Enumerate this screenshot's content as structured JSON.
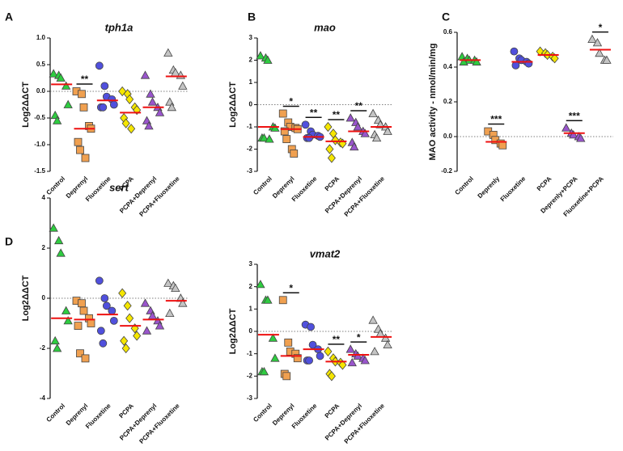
{
  "chart_data": [
    {
      "type": "dot",
      "label": "A",
      "title": "tph1a",
      "ylabel": "Log2ΔΔCT",
      "categories": [
        "Control",
        "Deprenyl",
        "Fluoxetine",
        "PCPA",
        "PCPA+Deprenyl",
        "PCPA+Fluoxetine"
      ],
      "colors": [
        "#2ecc40",
        "#f0a050",
        "#5050dd",
        "#f5e600",
        "#9955cc",
        "#c4c4c4"
      ],
      "markers": [
        "triangle",
        "square",
        "circle",
        "diamond",
        "triangle",
        "triangle"
      ],
      "values": [
        [
          0.33,
          0.3,
          0.25,
          0.1,
          -0.25,
          -0.45,
          -0.55
        ],
        [
          0.0,
          -0.05,
          -0.3,
          -0.65,
          -0.7,
          -0.95,
          -1.1,
          -1.25
        ],
        [
          0.48,
          0.1,
          -0.1,
          -0.15,
          -0.25,
          -0.3,
          -0.3
        ],
        [
          0.0,
          -0.05,
          -0.15,
          -0.3,
          -0.35,
          -0.5,
          -0.6,
          -0.7
        ],
        [
          0.3,
          -0.05,
          -0.2,
          -0.3,
          -0.4,
          -0.55,
          -0.65
        ],
        [
          0.72,
          0.4,
          0.35,
          0.3,
          0.1,
          -0.2,
          -0.3
        ]
      ],
      "medians": [
        0.13,
        -0.7,
        -0.17,
        -0.4,
        -0.3,
        0.28
      ],
      "median_color": "#ee1111",
      "annotations": [
        null,
        "**",
        null,
        null,
        null,
        null
      ],
      "refline": 0,
      "ylim": [
        -1.5,
        1.0
      ],
      "yticks": [
        -1.5,
        {
          "value": -1,
          "label": "-1.0"
        },
        -0.5,
        {
          "value": 0,
          "label": "0.0"
        },
        0.5,
        {
          "value": 1,
          "label": "1.0"
        }
      ]
    },
    {
      "type": "dot",
      "label": "B",
      "title": "mao",
      "ylabel": "Log2ΔΔCT",
      "categories": [
        "Control",
        "Deprenyl",
        "Fluoxetine",
        "PCPA",
        "PCPA+Deprenyl",
        "PCPA+Fluoxetine"
      ],
      "colors": [
        "#2ecc40",
        "#f0a050",
        "#5050dd",
        "#f5e600",
        "#9955cc",
        "#c4c4c4"
      ],
      "markers": [
        "triangle",
        "square",
        "circle",
        "diamond",
        "triangle",
        "triangle"
      ],
      "values": [
        [
          2.2,
          2.1,
          2.0,
          -1.0,
          -1.05,
          -1.5,
          -1.5,
          -1.55
        ],
        [
          -0.4,
          -0.8,
          -1.0,
          -1.05,
          -1.1,
          -1.2,
          -1.55,
          -2.0,
          -2.2
        ],
        [
          -0.9,
          -1.2,
          -1.35,
          -1.4,
          -1.45,
          -1.5,
          -1.5
        ],
        [
          -1.0,
          -1.3,
          -1.6,
          -1.7,
          -1.75,
          -2.0,
          -2.4
        ],
        [
          -0.6,
          -0.8,
          -1.0,
          -1.2,
          -1.3,
          -1.7,
          -1.9
        ],
        [
          -0.4,
          -0.7,
          -0.9,
          -1.0,
          -1.2,
          -1.35,
          -1.5
        ]
      ],
      "medians": [
        -1.0,
        -1.1,
        -1.45,
        -1.65,
        -1.2,
        -1.0
      ],
      "median_color": "#ee1111",
      "annotations": [
        null,
        "*",
        "**",
        "**",
        "**",
        null
      ],
      "refline": 0,
      "ylim": [
        -3,
        3
      ],
      "yticks": [
        -3,
        -2,
        -1,
        0,
        1,
        2,
        3
      ]
    },
    {
      "type": "dot",
      "label": "C",
      "ylabel": "MAO activity - nmol/min/mg",
      "categories": [
        "Control",
        "Deprenly",
        "Fluoxetine",
        "PCPA",
        "Deprenly+PCPA",
        "Fluoxetine+PCPA"
      ],
      "colors": [
        "#2ecc40",
        "#f0a050",
        "#5050dd",
        "#f5e600",
        "#9955cc",
        "#c4c4c4"
      ],
      "markers": [
        "triangle",
        "square",
        "circle",
        "diamond",
        "triangle",
        "triangle"
      ],
      "values": [
        [
          0.46,
          0.45,
          0.44,
          0.44,
          0.43,
          0.43
        ],
        [
          0.03,
          0.01,
          -0.02,
          -0.04,
          -0.05
        ],
        [
          0.49,
          0.45,
          0.44,
          0.43,
          0.42,
          0.41
        ],
        [
          0.49,
          0.48,
          0.47,
          0.46,
          0.45
        ],
        [
          0.05,
          0.02,
          0.01,
          0.0,
          -0.01
        ],
        [
          0.56,
          0.54,
          0.48,
          0.44,
          0.44
        ]
      ],
      "medians": [
        0.44,
        -0.03,
        0.43,
        0.47,
        0.02,
        0.5
      ],
      "median_color": "#ee1111",
      "annotations": [
        null,
        "***",
        null,
        null,
        "***",
        "*"
      ],
      "refline": 0,
      "ylim": [
        -0.2,
        0.6
      ],
      "yticks": [
        -0.2,
        {
          "value": 0,
          "label": "0.0"
        },
        0.2,
        0.4,
        0.6
      ]
    },
    {
      "type": "dot",
      "label": "D",
      "title": "sert",
      "ylabel": "Log2ΔΔCT",
      "categories": [
        "Control",
        "Deprenyl",
        "Fluoxetine",
        "PCPA",
        "PCPA+Deprenyl",
        "PCPA+Fluoxetine"
      ],
      "colors": [
        "#2ecc40",
        "#f0a050",
        "#5050dd",
        "#f5e600",
        "#9955cc",
        "#c4c4c4"
      ],
      "markers": [
        "triangle",
        "square",
        "circle",
        "diamond",
        "triangle",
        "triangle"
      ],
      "values": [
        [
          2.8,
          2.3,
          1.8,
          -0.5,
          -0.9,
          -1.7,
          -2.0
        ],
        [
          -0.1,
          -0.2,
          -0.5,
          -0.8,
          -1.0,
          -1.1,
          -2.2,
          -2.4
        ],
        [
          0.7,
          0.0,
          -0.3,
          -0.5,
          -0.9,
          -1.3,
          -1.8
        ],
        [
          0.2,
          -0.3,
          -0.8,
          -1.2,
          -1.5,
          -1.7,
          -2.0
        ],
        [
          -0.2,
          -0.5,
          -0.7,
          -0.9,
          -1.1,
          -1.3
        ],
        [
          0.6,
          0.5,
          0.4,
          0.0,
          -0.2,
          -0.6
        ]
      ],
      "medians": [
        -0.8,
        -0.85,
        -0.65,
        -1.1,
        -0.85,
        -0.1
      ],
      "median_color": "#ee1111",
      "annotations": [
        null,
        null,
        null,
        null,
        null,
        null
      ],
      "refline": 0,
      "ylim": [
        -4,
        4
      ],
      "yticks": [
        -4,
        -2,
        0,
        2,
        4
      ]
    },
    {
      "type": "dot",
      "title": "vmat2",
      "ylabel": "Log2ΔΔCT",
      "categories": [
        "Control",
        "Deprenyl",
        "Fluoxetine",
        "PCPA",
        "PCPA+Deprenyl",
        "PCPA+Fluoxetine"
      ],
      "colors": [
        "#2ecc40",
        "#f0a050",
        "#5050dd",
        "#f5e600",
        "#9955cc",
        "#c4c4c4"
      ],
      "markers": [
        "triangle",
        "square",
        "circle",
        "diamond",
        "triangle",
        "triangle"
      ],
      "values": [
        [
          2.1,
          1.4,
          1.4,
          -0.3,
          -1.2,
          -1.8,
          -1.8
        ],
        [
          1.4,
          -0.5,
          -0.9,
          -1.0,
          -1.2,
          -1.9,
          -2.0
        ],
        [
          0.3,
          0.2,
          -0.6,
          -0.8,
          -1.1,
          -1.3,
          -1.3
        ],
        [
          -0.9,
          -1.2,
          -1.35,
          -1.4,
          -1.5,
          -1.9,
          -2.0
        ],
        [
          -0.8,
          -1.0,
          -1.1,
          -1.2,
          -1.3,
          -1.4
        ],
        [
          0.5,
          0.1,
          -0.1,
          -0.3,
          -0.6,
          -0.9
        ]
      ],
      "medians": [
        -0.15,
        -1.1,
        -0.8,
        -1.35,
        -1.05,
        -0.25
      ],
      "median_color": "#ee1111",
      "annotations": [
        null,
        "*",
        null,
        "**",
        "*",
        null
      ],
      "refline": 0,
      "ylim": [
        -3,
        3
      ],
      "yticks": [
        -3,
        -2,
        -1,
        0,
        1,
        2,
        3
      ]
    }
  ]
}
